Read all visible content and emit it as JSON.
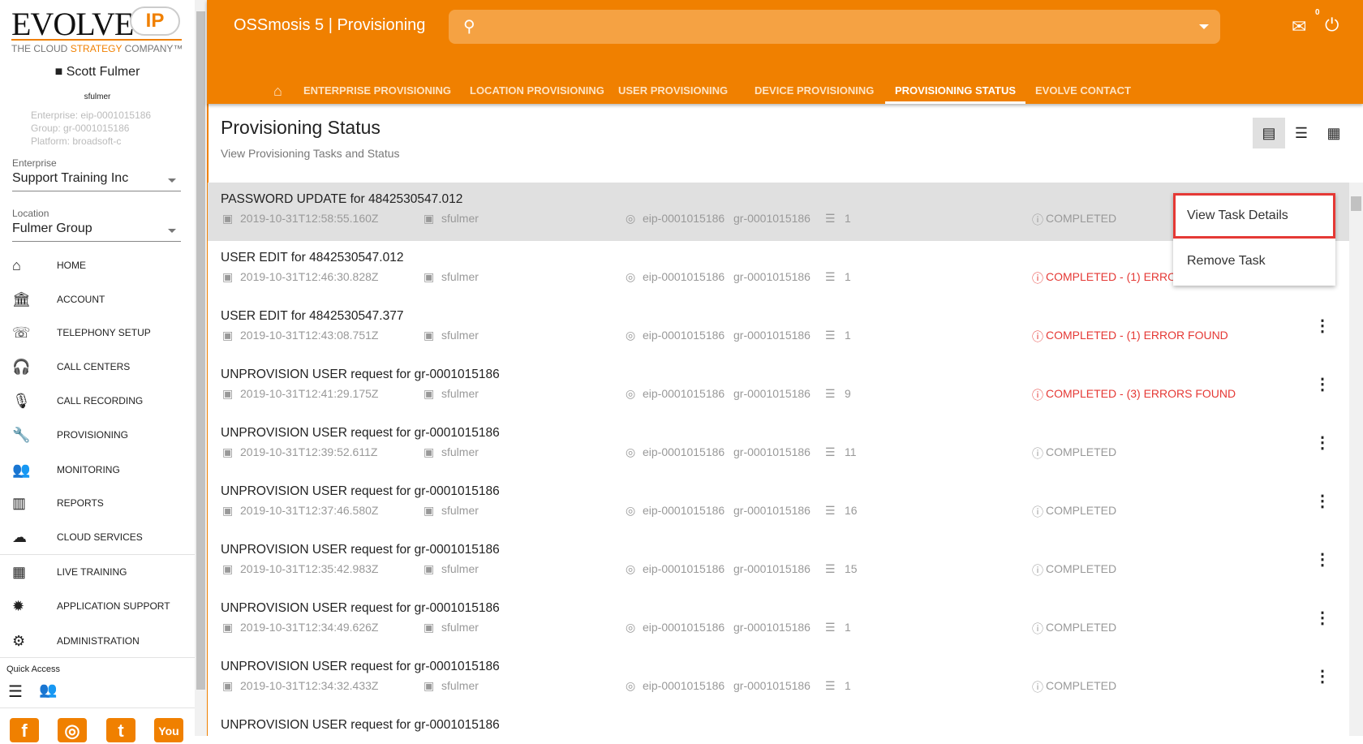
{
  "brand": {
    "logo_main": "EVOLVE",
    "logo_ip": "IP",
    "tagline_a": "THE CLOUD ",
    "tagline_b": "STRATEGY",
    "tagline_c": " COMPANY™"
  },
  "user": {
    "name": "Scott Fulmer",
    "login": "sfulmer",
    "enterprise": "Enterprise: eip-0001015186",
    "group": "Group: gr-0001015186",
    "platform": "Platform: broadsoft-c"
  },
  "selectors": {
    "enterprise_label": "Enterprise",
    "enterprise_value": "Support Training Inc",
    "location_label": "Location",
    "location_value": "Fulmer Group"
  },
  "nav": [
    {
      "label": "HOME",
      "icon": "home-icon"
    },
    {
      "label": "ACCOUNT",
      "icon": "bank-icon"
    },
    {
      "label": "TELEPHONY SETUP",
      "icon": "phone-icon"
    },
    {
      "label": "CALL CENTERS",
      "icon": "headset-icon"
    },
    {
      "label": "CALL RECORDING",
      "icon": "mic-icon"
    },
    {
      "label": "PROVISIONING",
      "icon": "wrench-icon"
    },
    {
      "label": "MONITORING",
      "icon": "people-icon"
    },
    {
      "label": "REPORTS",
      "icon": "chart-icon"
    },
    {
      "label": "CLOUD SERVICES",
      "icon": "cloud-icon"
    },
    {
      "label": "LIVE TRAINING",
      "icon": "calendar-icon"
    },
    {
      "label": "APPLICATION SUPPORT",
      "icon": "bug-icon"
    },
    {
      "label": "ADMINISTRATION",
      "icon": "gear-icon"
    }
  ],
  "quick_access": {
    "label": "Quick Access"
  },
  "header": {
    "title": "OSSmosis 5 | Provisioning",
    "mail_count": "0"
  },
  "tabs": [
    "ENTERPRISE PROVISIONING",
    "LOCATION PROVISIONING",
    "USER PROVISIONING",
    "DEVICE PROVISIONING",
    "PROVISIONING STATUS",
    "EVOLVE CONTACT"
  ],
  "page": {
    "title": "Provisioning Status",
    "subtitle": "View Provisioning Tasks and Status"
  },
  "tasks": [
    {
      "title": "PASSWORD UPDATE for 4842530547.012",
      "date": "2019-10-31T12:58:55.160Z",
      "user": "sfulmer",
      "enterprise": "eip-0001015186",
      "group": "gr-0001015186",
      "count": "1",
      "status": "COMPLETED",
      "error": false
    },
    {
      "title": "USER EDIT for 4842530547.012",
      "date": "2019-10-31T12:46:30.828Z",
      "user": "sfulmer",
      "enterprise": "eip-0001015186",
      "group": "gr-0001015186",
      "count": "1",
      "status": "COMPLETED - (1) ERROR FOUND",
      "error": true
    },
    {
      "title": "USER EDIT for 4842530547.377",
      "date": "2019-10-31T12:43:08.751Z",
      "user": "sfulmer",
      "enterprise": "eip-0001015186",
      "group": "gr-0001015186",
      "count": "1",
      "status": "COMPLETED - (1) ERROR FOUND",
      "error": true
    },
    {
      "title": "UNPROVISION USER request for gr-0001015186",
      "date": "2019-10-31T12:41:29.175Z",
      "user": "sfulmer",
      "enterprise": "eip-0001015186",
      "group": "gr-0001015186",
      "count": "9",
      "status": "COMPLETED - (3) ERRORS FOUND",
      "error": true
    },
    {
      "title": "UNPROVISION USER request for gr-0001015186",
      "date": "2019-10-31T12:39:52.611Z",
      "user": "sfulmer",
      "enterprise": "eip-0001015186",
      "group": "gr-0001015186",
      "count": "11",
      "status": "COMPLETED",
      "error": false
    },
    {
      "title": "UNPROVISION USER request for gr-0001015186",
      "date": "2019-10-31T12:37:46.580Z",
      "user": "sfulmer",
      "enterprise": "eip-0001015186",
      "group": "gr-0001015186",
      "count": "16",
      "status": "COMPLETED",
      "error": false
    },
    {
      "title": "UNPROVISION USER request for gr-0001015186",
      "date": "2019-10-31T12:35:42.983Z",
      "user": "sfulmer",
      "enterprise": "eip-0001015186",
      "group": "gr-0001015186",
      "count": "15",
      "status": "COMPLETED",
      "error": false
    },
    {
      "title": "UNPROVISION USER request for gr-0001015186",
      "date": "2019-10-31T12:34:49.626Z",
      "user": "sfulmer",
      "enterprise": "eip-0001015186",
      "group": "gr-0001015186",
      "count": "1",
      "status": "COMPLETED",
      "error": false
    },
    {
      "title": "UNPROVISION USER request for gr-0001015186",
      "date": "2019-10-31T12:34:32.433Z",
      "user": "sfulmer",
      "enterprise": "eip-0001015186",
      "group": "gr-0001015186",
      "count": "1",
      "status": "COMPLETED",
      "error": false
    },
    {
      "title": "UNPROVISION USER request for gr-0001015186",
      "date": "",
      "user": "",
      "enterprise": "",
      "group": "",
      "count": "",
      "status": "",
      "error": false
    }
  ],
  "context_menu": {
    "items": [
      "View Task Details",
      "Remove Task"
    ]
  },
  "colors": {
    "brand": "#f08000",
    "error": "#e53935",
    "selected_row": "#e0e0e0"
  }
}
